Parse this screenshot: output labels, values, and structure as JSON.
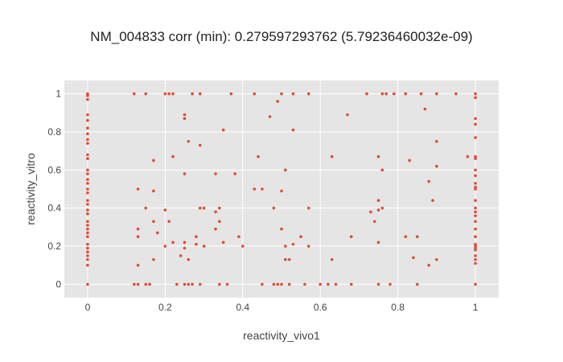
{
  "chart_data": {
    "type": "scatter",
    "title": "NM_004833 corr (min): 0.279597293762 (5.79236460032e-09)",
    "xlabel": "reactivity_vivo1",
    "ylabel": "reactivity_vitro",
    "xlim": [
      -0.06,
      1.06
    ],
    "ylim": [
      -0.07,
      1.07
    ],
    "x_ticks": [
      0,
      0.2,
      0.4,
      0.6,
      0.8,
      1
    ],
    "x_tick_labels": [
      "0",
      "0.2",
      "0.4",
      "0.6",
      "0.8",
      "1"
    ],
    "y_ticks": [
      0,
      0.2,
      0.4,
      0.6,
      0.8,
      1
    ],
    "y_tick_labels": [
      "0",
      "0.2",
      "0.4",
      "0.6",
      "0.8",
      "1"
    ],
    "grid": true,
    "marker_color": "#e24a33",
    "plot_background": "#e5e5e5",
    "points": [
      [
        0,
        1
      ],
      [
        0,
        0.99
      ],
      [
        0,
        0.97
      ],
      [
        0,
        0.89
      ],
      [
        0,
        0.86
      ],
      [
        0,
        0.82
      ],
      [
        0,
        0.79
      ],
      [
        0,
        0.76
      ],
      [
        0,
        0.74
      ],
      [
        0,
        0.68
      ],
      [
        0,
        0.66
      ],
      [
        0,
        0.6
      ],
      [
        0,
        0.58
      ],
      [
        0,
        0.55
      ],
      [
        0,
        0.53
      ],
      [
        0,
        0.5
      ],
      [
        0,
        0.48
      ],
      [
        0,
        0.44
      ],
      [
        0,
        0.42
      ],
      [
        0,
        0.39
      ],
      [
        0,
        0.37
      ],
      [
        0,
        0.33
      ],
      [
        0,
        0.31
      ],
      [
        0,
        0.29
      ],
      [
        0,
        0.27
      ],
      [
        0,
        0.25
      ],
      [
        0,
        0.21
      ],
      [
        0,
        0.19
      ],
      [
        0,
        0.17
      ],
      [
        0,
        0.15
      ],
      [
        0,
        0.13
      ],
      [
        0,
        0.1
      ],
      [
        0,
        0
      ],
      [
        0.12,
        1
      ],
      [
        0.12,
        0
      ],
      [
        0.13,
        0.5
      ],
      [
        0.13,
        0.29
      ],
      [
        0.13,
        0.25
      ],
      [
        0.13,
        0.1
      ],
      [
        0.13,
        0
      ],
      [
        0.15,
        1
      ],
      [
        0.15,
        0.4
      ],
      [
        0.15,
        0
      ],
      [
        0.16,
        0
      ],
      [
        0.17,
        0.65
      ],
      [
        0.17,
        0.49
      ],
      [
        0.17,
        0.33
      ],
      [
        0.17,
        0.13
      ],
      [
        0.18,
        0.27
      ],
      [
        0.2,
        1
      ],
      [
        0.2,
        0.39
      ],
      [
        0.2,
        0.2
      ],
      [
        0.21,
        1
      ],
      [
        0.21,
        0.33
      ],
      [
        0.22,
        0.67
      ],
      [
        0.22,
        0.22
      ],
      [
        0.22,
        1
      ],
      [
        0.23,
        0
      ],
      [
        0.24,
        0.15
      ],
      [
        0.25,
        0.89
      ],
      [
        0.25,
        0.87
      ],
      [
        0.25,
        0.58
      ],
      [
        0.25,
        0.22
      ],
      [
        0.25,
        0.19
      ],
      [
        0.25,
        0
      ],
      [
        0.26,
        0.75
      ],
      [
        0.26,
        0.13
      ],
      [
        0.26,
        0
      ],
      [
        0.27,
        0
      ],
      [
        0.27,
        1
      ],
      [
        0.28,
        0.25
      ],
      [
        0.28,
        0.21
      ],
      [
        0.29,
        0.4
      ],
      [
        0.29,
        1
      ],
      [
        0.29,
        0.73
      ],
      [
        0.29,
        0
      ],
      [
        0.3,
        0.4
      ],
      [
        0.3,
        0.2
      ],
      [
        0.33,
        0.58
      ],
      [
        0.33,
        0.38
      ],
      [
        0.33,
        0.29
      ],
      [
        0.34,
        0.4
      ],
      [
        0.34,
        0.33
      ],
      [
        0.34,
        0
      ],
      [
        0.35,
        0.81
      ],
      [
        0.35,
        0.22
      ],
      [
        0.36,
        0
      ],
      [
        0.37,
        1
      ],
      [
        0.38,
        0.58
      ],
      [
        0.39,
        0.25
      ],
      [
        0.4,
        0.2
      ],
      [
        0.43,
        1
      ],
      [
        0.43,
        0.5
      ],
      [
        0.44,
        0.67
      ],
      [
        0.45,
        0.5
      ],
      [
        0.45,
        0
      ],
      [
        0.47,
        0.88
      ],
      [
        0.48,
        0.4
      ],
      [
        0.48,
        0
      ],
      [
        0.49,
        0.96
      ],
      [
        0.49,
        0
      ],
      [
        0.5,
        1
      ],
      [
        0.5,
        0.49
      ],
      [
        0.5,
        0.29
      ],
      [
        0.5,
        0
      ],
      [
        0.51,
        0.6
      ],
      [
        0.51,
        0.2
      ],
      [
        0.51,
        0.13
      ],
      [
        0.52,
        0.13
      ],
      [
        0.52,
        0
      ],
      [
        0.53,
        1
      ],
      [
        0.53,
        0.81
      ],
      [
        0.53,
        0.21
      ],
      [
        0.55,
        0.25
      ],
      [
        0.56,
        0
      ],
      [
        0.57,
        0.4
      ],
      [
        0.57,
        0.2
      ],
      [
        0.57,
        1
      ],
      [
        0.6,
        0
      ],
      [
        0.62,
        0
      ],
      [
        0.63,
        0.67
      ],
      [
        0.63,
        0.13
      ],
      [
        0.64,
        0
      ],
      [
        0.67,
        0.89
      ],
      [
        0.68,
        0.25
      ],
      [
        0.68,
        0
      ],
      [
        0.72,
        1
      ],
      [
        0.73,
        0.38
      ],
      [
        0.74,
        0.33
      ],
      [
        0.75,
        0.67
      ],
      [
        0.75,
        0.44
      ],
      [
        0.75,
        0.39
      ],
      [
        0.75,
        0.22
      ],
      [
        0.75,
        0
      ],
      [
        0.76,
        0.6
      ],
      [
        0.76,
        0.4
      ],
      [
        0.76,
        1
      ],
      [
        0.77,
        1
      ],
      [
        0.78,
        0
      ],
      [
        0.79,
        1
      ],
      [
        0.82,
        1
      ],
      [
        0.82,
        0.25
      ],
      [
        0.83,
        0.65
      ],
      [
        0.84,
        0.14
      ],
      [
        0.85,
        0.25
      ],
      [
        0.85,
        0
      ],
      [
        0.86,
        1
      ],
      [
        0.87,
        0.92
      ],
      [
        0.88,
        0.54
      ],
      [
        0.88,
        0.1
      ],
      [
        0.89,
        0.44
      ],
      [
        0.9,
        0.75
      ],
      [
        0.9,
        0.62
      ],
      [
        0.9,
        0.13
      ],
      [
        0.9,
        1
      ],
      [
        0.95,
        1
      ],
      [
        0.98,
        0.67
      ],
      [
        1,
        1
      ],
      [
        1,
        0.98
      ],
      [
        1,
        0.87
      ],
      [
        1,
        0.84
      ],
      [
        1,
        0.77
      ],
      [
        1,
        0.67
      ],
      [
        1,
        0.66
      ],
      [
        1,
        0.6
      ],
      [
        1,
        0.57
      ],
      [
        1,
        0.53
      ],
      [
        1,
        0.51
      ],
      [
        1,
        0.5
      ],
      [
        1,
        0.44
      ],
      [
        1,
        0.4
      ],
      [
        1,
        0.38
      ],
      [
        1,
        0.36
      ],
      [
        1,
        0.33
      ],
      [
        1,
        0.29
      ],
      [
        1,
        0.25
      ],
      [
        1,
        0.21
      ],
      [
        1,
        0.2
      ],
      [
        1,
        0.19
      ],
      [
        1,
        0.18
      ],
      [
        1,
        0.15
      ],
      [
        1,
        0.13
      ],
      [
        1,
        0.11
      ],
      [
        1,
        0
      ]
    ]
  }
}
